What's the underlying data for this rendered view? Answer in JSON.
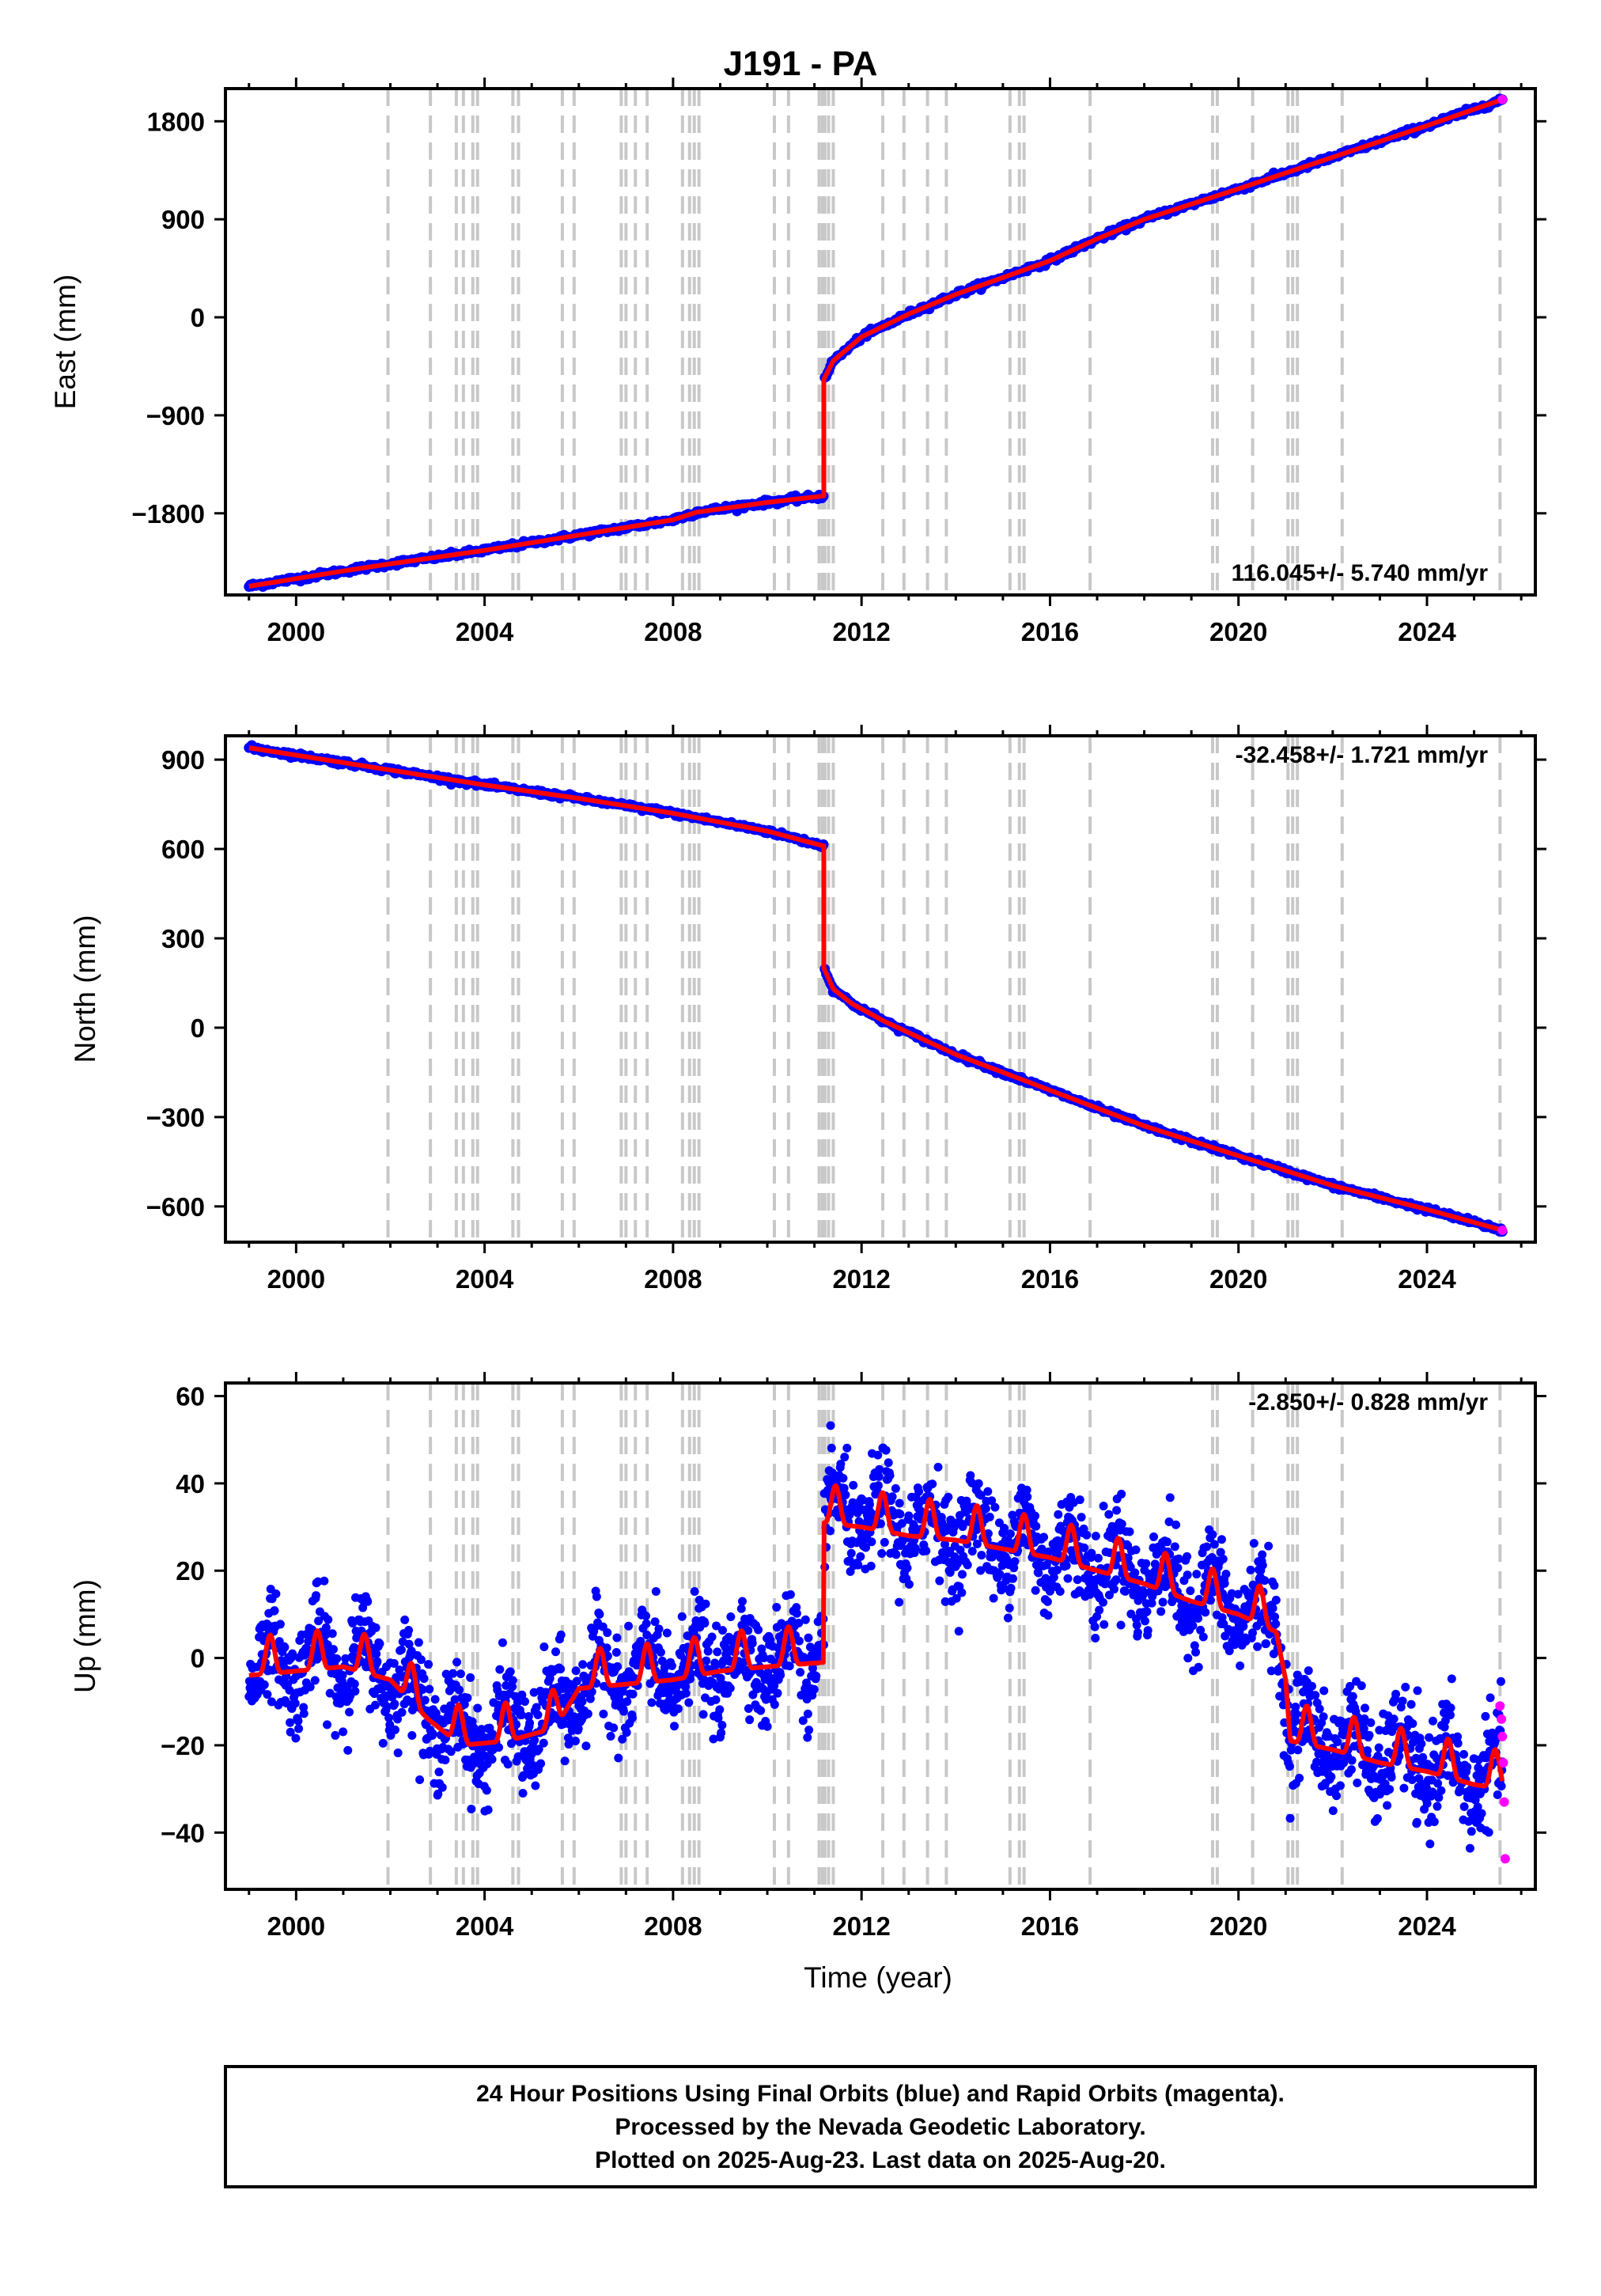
{
  "title": "J191 - PA",
  "xlabel": "Time (year)",
  "x_tick_labels": [
    "2000",
    "2004",
    "2008",
    "2012",
    "2016",
    "2020",
    "2024"
  ],
  "colors": {
    "final": "#0000ff",
    "rapid": "#ff00ff",
    "model": "#ff0000",
    "event": "#c8c8c8"
  },
  "footer": [
    "24 Hour Positions Using Final Orbits (blue) and Rapid Orbits (magenta).",
    "Processed by the Nevada Geodetic Laboratory.",
    "Plotted on 2025-Aug-23. Last data on 2025-Aug-20."
  ],
  "chart_data": [
    {
      "type": "scatter",
      "ylabel": "East (mm)",
      "rate": "116.045+/- 5.740 mm/yr",
      "xlim": [
        1998.5,
        2026.3
      ],
      "ylim": [
        -2550,
        2100
      ],
      "y_ticks": [
        1800,
        900,
        0,
        -900,
        -1800
      ],
      "y_tick_labels": [
        "1800",
        "900",
        "0",
        "−900",
        "−1800"
      ],
      "series": [
        {
          "role": "final",
          "x": [
            1999.0,
            2001.0,
            2001.9,
            2004.0,
            2006.0,
            2008.0,
            2008.5,
            2010.0,
            2011.2,
            2011.2,
            2011.4,
            2012.0,
            2013.0,
            2014.0,
            2016.0,
            2017.0,
            2018.0,
            2020.0,
            2022.0,
            2024.0,
            2025.6
          ],
          "y": [
            -2470,
            -2330,
            -2270,
            -2140,
            -2000,
            -1860,
            -1790,
            -1700,
            -1640,
            -570,
            -400,
            -180,
            30,
            210,
            520,
            720,
            900,
            1180,
            1470,
            1760,
            2000
          ]
        },
        {
          "role": "rapid",
          "x": [
            2025.6
          ],
          "y": [
            2000
          ]
        },
        {
          "role": "model",
          "x": [
            1999.0,
            2001.0,
            2001.9,
            2004.0,
            2006.0,
            2008.0,
            2008.5,
            2010.0,
            2011.2,
            2011.2,
            2011.4,
            2012.0,
            2013.0,
            2014.0,
            2016.0,
            2017.0,
            2018.0,
            2020.0,
            2022.0,
            2024.0,
            2025.6
          ],
          "y": [
            -2470,
            -2330,
            -2270,
            -2140,
            -2000,
            -1860,
            -1790,
            -1700,
            -1640,
            -570,
            -400,
            -180,
            30,
            210,
            520,
            720,
            900,
            1180,
            1470,
            1760,
            2000
          ]
        }
      ]
    },
    {
      "type": "scatter",
      "ylabel": "North (mm)",
      "rate": "-32.458+/- 1.721 mm/yr",
      "xlim": [
        1998.5,
        2026.3
      ],
      "ylim": [
        -720,
        980
      ],
      "y_ticks": [
        900,
        600,
        300,
        0,
        -300,
        -600
      ],
      "y_tick_labels": [
        "900",
        "600",
        "300",
        "0",
        "−300",
        "−600"
      ],
      "series": [
        {
          "role": "final",
          "x": [
            1999.0,
            2000.0,
            2002.0,
            2004.0,
            2006.0,
            2008.0,
            2010.0,
            2011.2,
            2011.2,
            2011.4,
            2011.8,
            2012.5,
            2014.0,
            2016.0,
            2018.0,
            2020.0,
            2022.0,
            2024.0,
            2025.6
          ],
          "y": [
            940,
            915,
            865,
            815,
            770,
            720,
            660,
            610,
            200,
            130,
            80,
            20,
            -90,
            -210,
            -330,
            -430,
            -530,
            -610,
            -680
          ]
        },
        {
          "role": "rapid",
          "x": [
            2025.6
          ],
          "y": [
            -680
          ]
        },
        {
          "role": "model",
          "x": [
            1999.0,
            2000.0,
            2002.0,
            2004.0,
            2006.0,
            2008.0,
            2010.0,
            2011.2,
            2011.2,
            2011.4,
            2011.8,
            2012.5,
            2014.0,
            2016.0,
            2018.0,
            2020.0,
            2022.0,
            2024.0,
            2025.6
          ],
          "y": [
            940,
            915,
            865,
            815,
            770,
            720,
            660,
            610,
            200,
            130,
            80,
            20,
            -90,
            -210,
            -330,
            -430,
            -530,
            -610,
            -680
          ]
        }
      ]
    },
    {
      "type": "scatter",
      "ylabel": "Up (mm)",
      "rate": "-2.850+/- 0.828 mm/yr",
      "xlim": [
        1998.5,
        2026.3
      ],
      "ylim": [
        -53,
        63
      ],
      "y_ticks": [
        60,
        40,
        20,
        0,
        -20,
        -40
      ],
      "y_tick_labels": [
        "60",
        "40",
        "20",
        "0",
        "−20",
        "−40"
      ],
      "series": [
        {
          "role": "final",
          "x": [
            1999.0,
            2000.0,
            2001.0,
            2002.0,
            2002.8,
            2003.5,
            2004.5,
            2005.5,
            2006.0,
            2007.0,
            2008.0,
            2009.0,
            2010.0,
            2011.2,
            2011.2,
            2012.0,
            2013.0,
            2014.0,
            2015.0,
            2016.0,
            2017.0,
            2018.0,
            2019.0,
            2020.0,
            2020.8,
            2021.0,
            2021.1,
            2022.0,
            2023.0,
            2024.0,
            2025.0,
            2025.6
          ],
          "y": [
            -2,
            -1,
            0,
            -3,
            -12,
            -18,
            -17,
            -14,
            -5,
            -4,
            -3,
            -1,
            0,
            1,
            33,
            32,
            30,
            29,
            27,
            25,
            22,
            19,
            15,
            12,
            8,
            -3,
            -17,
            -19,
            -22,
            -24,
            -27,
            -28
          ]
        },
        {
          "role": "rapid",
          "x": [
            2025.55,
            2025.58,
            2025.6,
            2025.62,
            2025.64,
            2025.66
          ],
          "y": [
            -11,
            -14,
            -18,
            -24,
            -33,
            -46
          ]
        },
        {
          "role": "model",
          "x": [
            1999.0,
            2000.0,
            2001.0,
            2002.0,
            2002.8,
            2003.5,
            2004.5,
            2005.5,
            2006.0,
            2007.0,
            2008.0,
            2009.0,
            2010.0,
            2011.2,
            2011.2,
            2012.0,
            2013.0,
            2014.0,
            2015.0,
            2016.0,
            2017.0,
            2018.0,
            2019.0,
            2020.0,
            2020.8,
            2021.0,
            2021.1,
            2022.0,
            2023.0,
            2024.0,
            2025.0,
            2025.6
          ],
          "y": [
            -2,
            -1,
            0,
            -3,
            -12,
            -18,
            -17,
            -14,
            -5,
            -4,
            -3,
            -1,
            0,
            1,
            33,
            32,
            30,
            29,
            27,
            25,
            22,
            19,
            15,
            12,
            8,
            -3,
            -17,
            -19,
            -22,
            -24,
            -27,
            -28
          ]
        }
      ]
    }
  ],
  "event_years": [
    2001.95,
    2002.85,
    2003.4,
    2003.55,
    2003.75,
    2003.85,
    2004.6,
    2004.72,
    2005.65,
    2005.9,
    2006.9,
    2007.0,
    2007.2,
    2007.45,
    2008.2,
    2008.35,
    2008.45,
    2008.55,
    2010.15,
    2010.45,
    2011.1,
    2011.17,
    2011.22,
    2011.3,
    2011.4,
    2012.45,
    2012.9,
    2013.4,
    2013.8,
    2015.15,
    2015.35,
    2015.45,
    2016.85,
    2019.45,
    2019.55,
    2020.3,
    2021.05,
    2021.15,
    2021.25,
    2022.2,
    2025.55
  ]
}
